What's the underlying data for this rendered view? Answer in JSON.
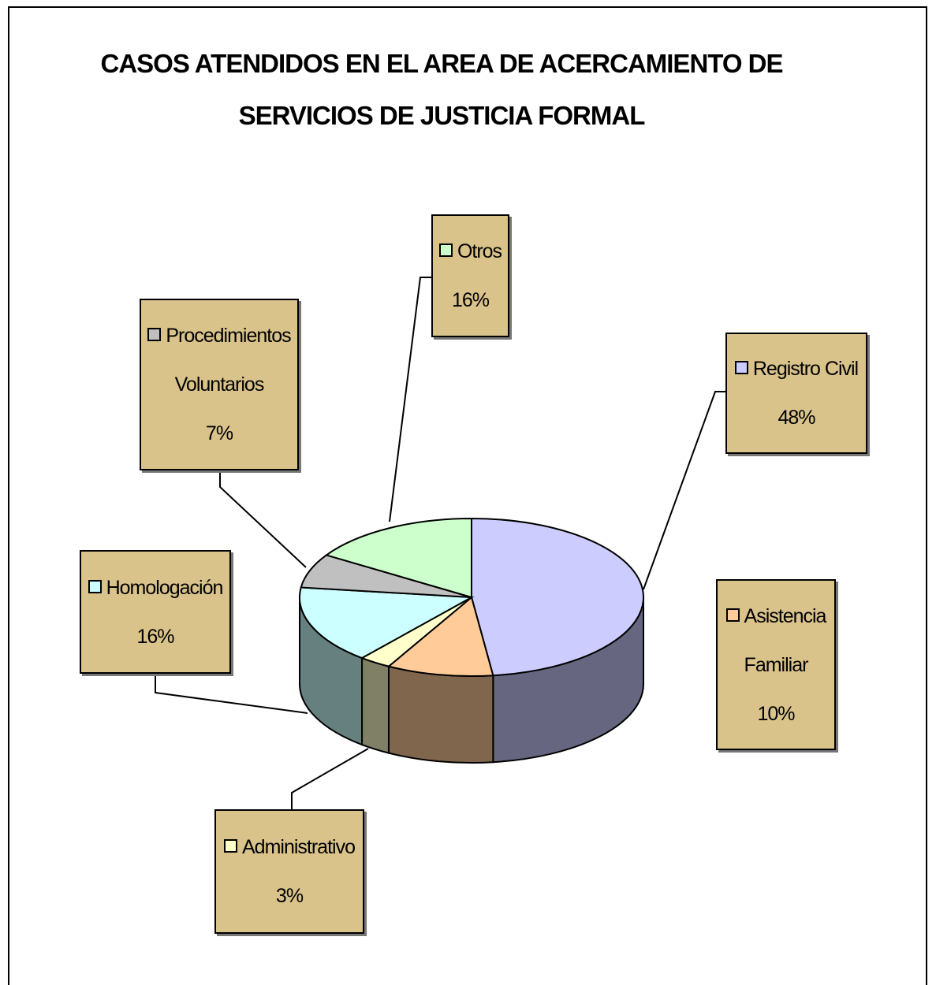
{
  "chart_data": {
    "type": "pie3d",
    "title": "CASOS ATENDIDOS EN EL AREA DE ACERCAMIENTO DE\nSERVICIOS DE  JUSTICIA FORMAL",
    "categories": [
      "Registro Civil",
      "Asistencia Familiar",
      "Administrativo",
      "Homologación",
      "Procedimientos Voluntarios",
      "Otros"
    ],
    "values": [
      48,
      10,
      3,
      16,
      7,
      16
    ],
    "value_labels": [
      "48%",
      "10%",
      "3%",
      "16%",
      "7%",
      "16%"
    ],
    "colors": [
      "#ccccff",
      "#ffcc99",
      "#ffffcc",
      "#ccffff",
      "#c0c0c0",
      "#ccffcc"
    ]
  }
}
